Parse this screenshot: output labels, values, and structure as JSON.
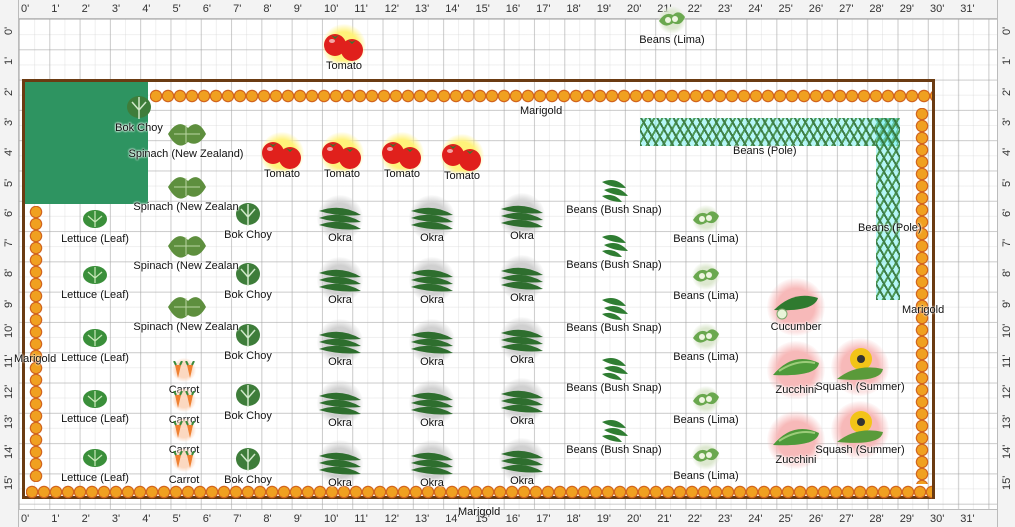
{
  "rulers": {
    "x_labels": [
      "0'",
      "1'",
      "2'",
      "3'",
      "4'",
      "5'",
      "6'",
      "7'",
      "8'",
      "9'",
      "10'",
      "11'",
      "12'",
      "13'",
      "14'",
      "15'",
      "16'",
      "17'",
      "18'",
      "19'",
      "20'",
      "21'",
      "22'",
      "23'",
      "24'",
      "25'",
      "26'",
      "27'",
      "28'",
      "29'",
      "30'",
      "31'"
    ],
    "y_labels": [
      "0'",
      "1'",
      "2'",
      "3'",
      "4'",
      "5'",
      "6'",
      "7'",
      "8'",
      "9'",
      "10'",
      "11'",
      "12'",
      "13'",
      "14'",
      "15'"
    ]
  },
  "colors": {
    "bed_border": "#6b3b12",
    "corner_block": "#2e9461",
    "marigold": "#f0a020",
    "pole_bean_trellis": "#78f0f0"
  },
  "labels": {
    "marigold_top": "Marigold",
    "marigold_bottom": "Marigold",
    "marigold_left": "Marigold",
    "marigold_right": "Marigold",
    "beans_pole_top": "Beans (Pole)",
    "beans_pole_side": "Beans (Pole)"
  },
  "plants": [
    {
      "name": "Tomato",
      "icon": "tomato-icon",
      "color": "#e0201c",
      "halo": "#fff27a"
    },
    {
      "name": "Beans (Lima)",
      "icon": "lima-bean-icon",
      "color": "#6aa84f",
      "halo": "#dde8d0"
    },
    {
      "name": "Bok Choy",
      "icon": "bok-choy-icon",
      "color": "#3e7d3a",
      "halo": ""
    },
    {
      "name": "Spinach (New Zealand)",
      "icon": "spinach-icon",
      "color": "#5e8f3e",
      "halo": ""
    },
    {
      "name": "Spinach (New Zealan",
      "icon": "spinach-icon",
      "color": "#5e8f3e",
      "halo": ""
    },
    {
      "name": "Lettuce (Leaf)",
      "icon": "lettuce-icon",
      "color": "#3a8f3a",
      "halo": ""
    },
    {
      "name": "Carrot",
      "icon": "carrot-icon",
      "color": "#f08030",
      "halo": "#fbd8c0"
    },
    {
      "name": "Okra",
      "icon": "okra-icon",
      "color": "#2e6e2e",
      "halo": "#d0d0d0"
    },
    {
      "name": "Beans (Bush Snap)",
      "icon": "bush-bean-icon",
      "color": "#2f7d32",
      "halo": ""
    },
    {
      "name": "Cucumber",
      "icon": "cucumber-icon",
      "color": "#2f7a2f",
      "halo": "#f7b9b9"
    },
    {
      "name": "Zucchini",
      "icon": "zucchini-icon",
      "color": "#4e9a3a",
      "halo": "#f7b9b9"
    },
    {
      "name": "Squash (Summer)",
      "icon": "squash-icon",
      "color": "#f2c418",
      "halo": "#f7b9b9"
    }
  ]
}
